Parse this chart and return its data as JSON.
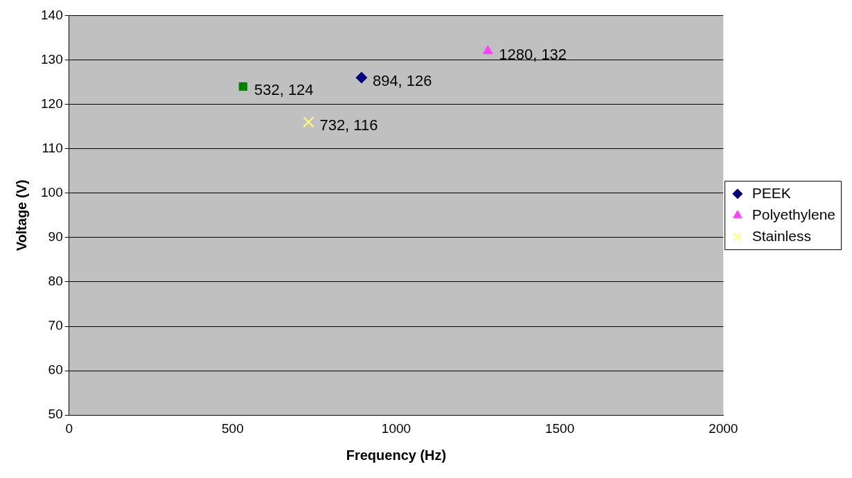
{
  "chart_data": {
    "type": "scatter",
    "xlabel": "Frequency (Hz)",
    "ylabel": "Voltage (V)",
    "xlim": [
      0,
      2000
    ],
    "xticks": [
      0,
      500,
      1000,
      1500,
      2000
    ],
    "ylim": [
      50,
      140
    ],
    "yticks": [
      50,
      60,
      70,
      80,
      90,
      100,
      110,
      120,
      130,
      140
    ],
    "grid": "y",
    "legend": "right",
    "series": [
      {
        "name": "PEEK",
        "color": "#000080",
        "marker": "diamond",
        "x": [
          894
        ],
        "values": [
          126
        ],
        "value_labels": [
          "894, 126"
        ]
      },
      {
        "color": "#008000",
        "marker": "square",
        "x": [
          532
        ],
        "values": [
          124
        ],
        "value_labels": [
          "532, 124"
        ]
      },
      {
        "name": "Polyethylene",
        "color": "#ff40ff",
        "marker": "triangle",
        "x": [
          1280
        ],
        "values": [
          132
        ],
        "value_labels": [
          "1280, 132"
        ]
      },
      {
        "name": "Stainless",
        "color": "#ffff80",
        "marker": "cross",
        "x": [
          732
        ],
        "values": [
          116
        ],
        "value_labels": [
          "732, 116"
        ]
      }
    ]
  }
}
